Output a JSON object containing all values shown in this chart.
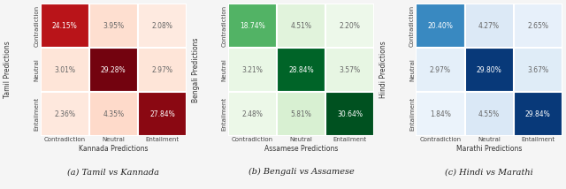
{
  "charts": [
    {
      "title": "(a) Tamil vs Kannada",
      "xlabel": "Kannada Predictions",
      "ylabel": "Tamil Predictions",
      "values": [
        [
          24.15,
          3.95,
          2.08
        ],
        [
          3.01,
          29.28,
          2.97
        ],
        [
          2.36,
          4.35,
          27.84
        ]
      ],
      "cmap": "Reds",
      "vmin": 0,
      "vmax": 30.0
    },
    {
      "title": "(b) Bengali vs Assamese",
      "xlabel": "Assamese Predictions",
      "ylabel": "Bengali Predictions",
      "values": [
        [
          18.74,
          4.51,
          2.2
        ],
        [
          3.21,
          28.84,
          3.57
        ],
        [
          2.48,
          5.81,
          30.64
        ]
      ],
      "cmap": "Greens",
      "vmin": 0,
      "vmax": 32.0
    },
    {
      "title": "(c) Hindi vs Marathi",
      "xlabel": "Marathi Predictions",
      "ylabel": "Hindi Predictions",
      "values": [
        [
          20.4,
          4.27,
          2.65
        ],
        [
          2.97,
          29.8,
          3.67
        ],
        [
          1.84,
          4.55,
          29.84
        ]
      ],
      "cmap": "Blues",
      "vmin": 0,
      "vmax": 31.0
    }
  ],
  "row_labels": [
    "Contradiction",
    "Neutral",
    "Entailment"
  ],
  "col_labels": [
    "Contradiction",
    "Neutral",
    "Entailment"
  ],
  "figsize": [
    6.4,
    2.14
  ],
  "dpi": 100,
  "title_fontsize": 7.0,
  "label_fontsize": 5.5,
  "tick_fontsize": 5.0,
  "cell_fontsize": 5.5,
  "white_text_threshold": 15.0,
  "bg_color": "#f5f5f5"
}
